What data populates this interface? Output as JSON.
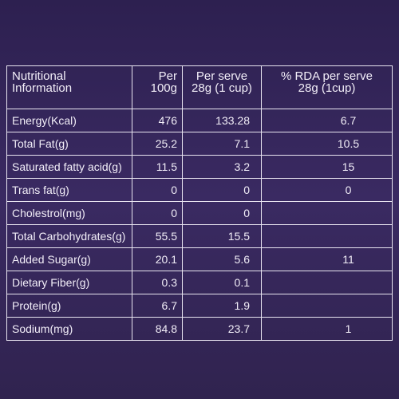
{
  "table": {
    "header": [
      "Nutritional\nInformation",
      "Per\n100g",
      "Per serve\n28g (1 cup)",
      "% RDA per serve\n28g (1cup)"
    ],
    "rows": [
      [
        "Energy(Kcal)",
        "476",
        "133.28",
        "6.7"
      ],
      [
        "Total Fat(g)",
        "25.2",
        "7.1",
        "10.5"
      ],
      [
        "Saturated fatty acid(g)",
        "11.5",
        "3.2",
        "15"
      ],
      [
        "Trans fat(g)",
        "0",
        "0",
        "0"
      ],
      [
        "Cholestrol(mg)",
        "0",
        "0"
      ],
      [
        "Total Carbohydrates(g)",
        "55.5",
        "15.5"
      ],
      [
        "Added Sugar(g)",
        "20.1",
        "5.6",
        "11"
      ],
      [
        "Dietary Fiber(g)",
        "0.3",
        "0.1"
      ],
      [
        "Protein(g)",
        "6.7",
        "1.9"
      ],
      [
        "Sodium(mg)",
        "84.8",
        "23.7",
        "1"
      ]
    ]
  }
}
